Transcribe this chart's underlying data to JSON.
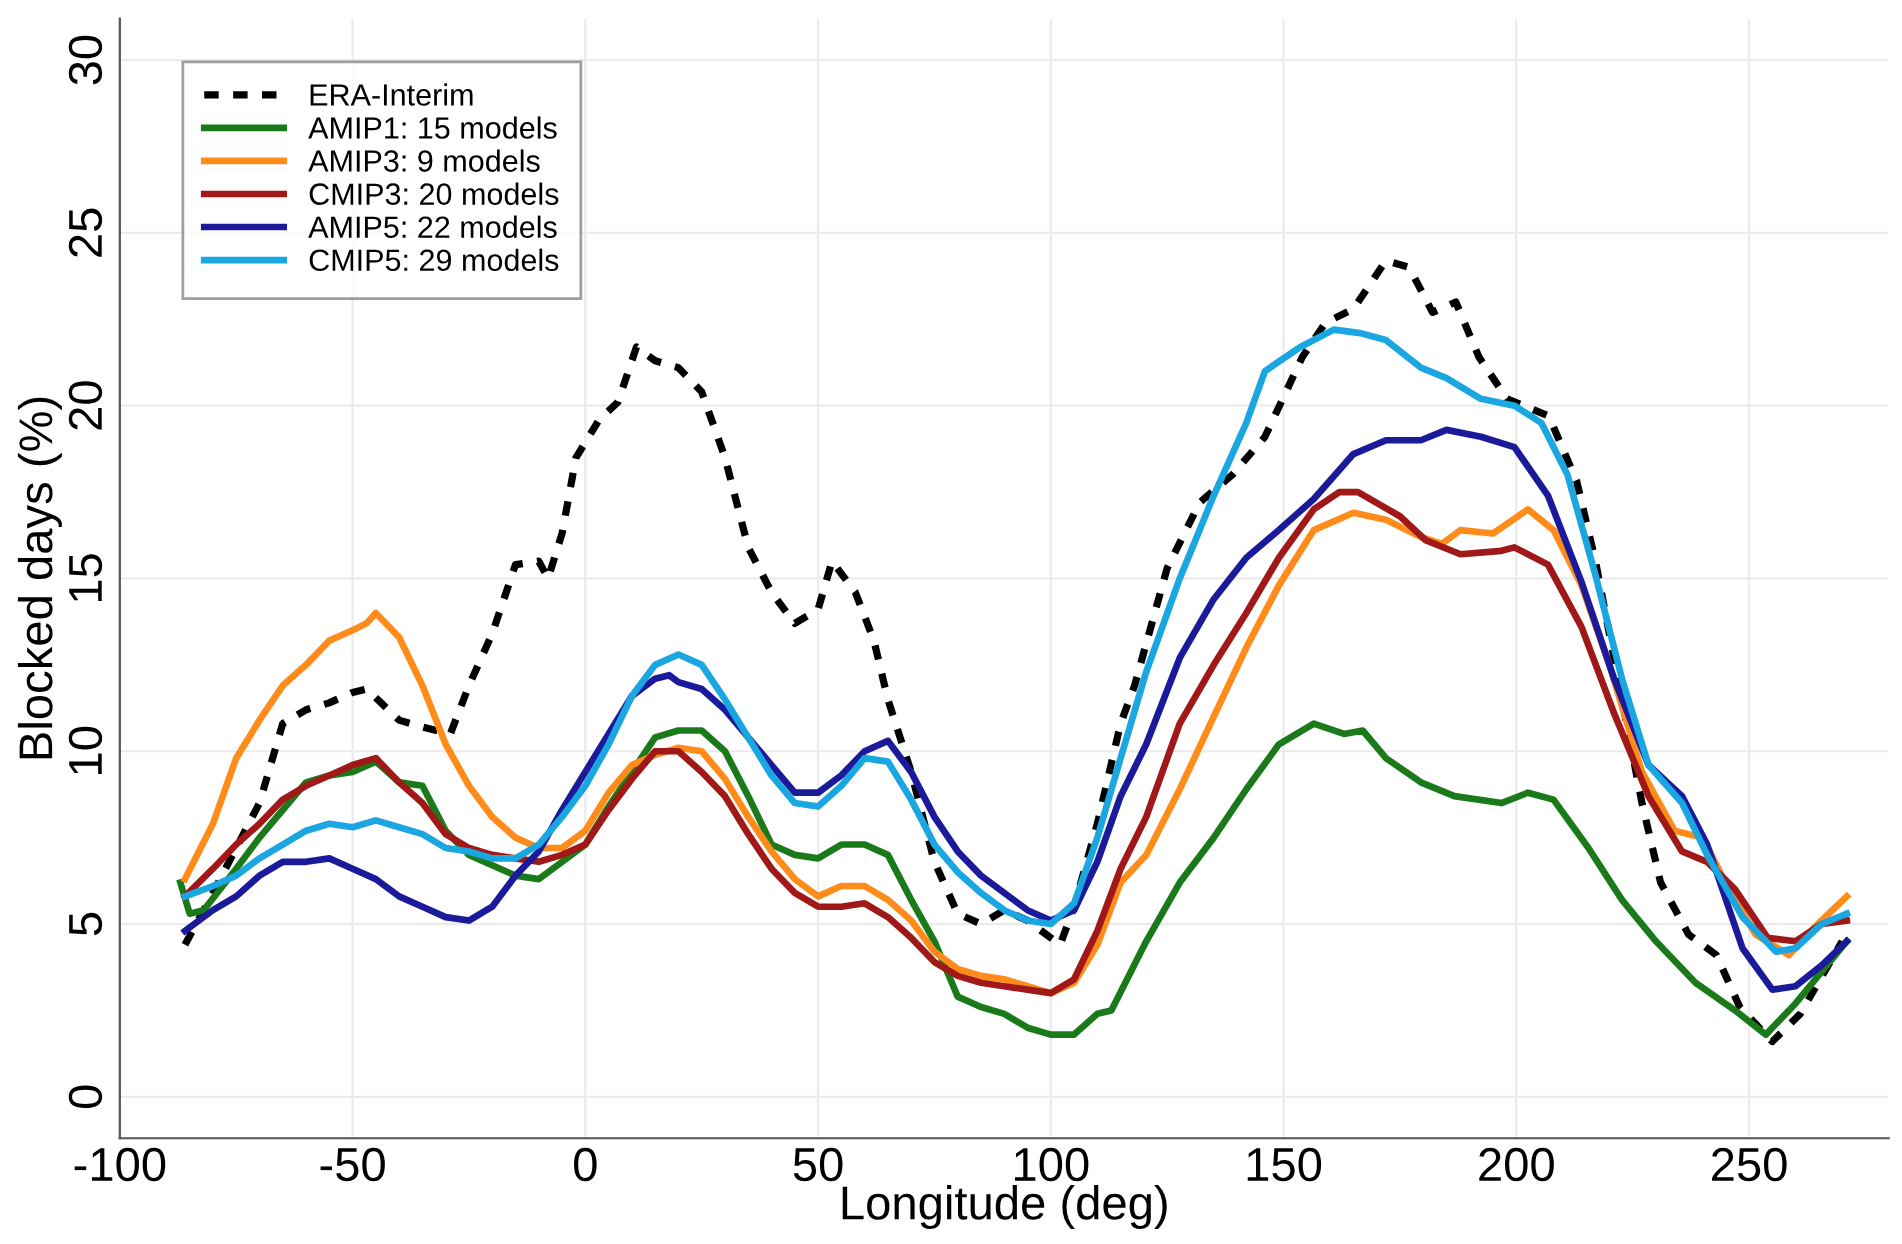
{
  "chart_data": {
    "type": "line",
    "xlabel": "Longitude (deg)",
    "ylabel": "Blocked days (%)",
    "xlim": [
      -100,
      280
    ],
    "ylim": [
      -1.2,
      31.2
    ],
    "xticks": [
      -100,
      -50,
      0,
      50,
      100,
      150,
      200,
      250
    ],
    "yticks": [
      0,
      5,
      10,
      15,
      20,
      25,
      30
    ],
    "grid": true,
    "legend": "top left",
    "marker": "none",
    "series": [
      {
        "name": "ERA-Interim",
        "color": "#000000",
        "line_style": "dotted",
        "x": [
          -86,
          -80,
          -70,
          -65,
          -60,
          -55,
          -50,
          -47,
          -40,
          -35,
          -29,
          -25,
          -20,
          -15,
          -10,
          -8,
          -5,
          -2,
          3,
          7,
          11,
          15,
          20,
          25,
          30,
          35,
          40,
          45,
          50,
          53,
          58,
          62,
          65,
          70,
          75,
          80,
          85,
          90,
          95,
          100,
          102,
          105,
          110,
          115,
          118,
          125,
          132,
          139,
          146,
          154,
          159,
          165,
          172,
          177,
          182,
          187,
          192,
          198,
          207,
          213,
          217,
          221,
          227,
          231,
          237,
          243,
          248,
          255,
          261,
          270
        ],
        "values": [
          4.4,
          5.9,
          8.5,
          10.8,
          11.2,
          11.4,
          11.7,
          11.8,
          10.9,
          10.7,
          10.5,
          11.9,
          13.4,
          15.4,
          15.5,
          15.0,
          16.3,
          18.5,
          19.6,
          20.1,
          21.7,
          21.3,
          21.1,
          20.4,
          18.5,
          15.9,
          14.6,
          13.7,
          14.1,
          15.5,
          14.6,
          13.2,
          11.5,
          9.4,
          6.8,
          5.3,
          5.0,
          5.4,
          5.1,
          4.6,
          4.4,
          5.5,
          7.9,
          10.8,
          11.9,
          15.3,
          17.2,
          18.0,
          19.1,
          21.4,
          22.4,
          22.8,
          24.2,
          24.0,
          22.7,
          23.0,
          21.4,
          20.2,
          19.7,
          17.8,
          15.5,
          12.7,
          8.5,
          6.2,
          4.7,
          4.1,
          2.6,
          1.6,
          2.4,
          4.5
        ]
      },
      {
        "name": "AMIP1: 15 models",
        "color": "#1a7a1a",
        "x": [
          -87,
          -85,
          -82,
          -75,
          -70,
          -65,
          -60,
          -55,
          -50,
          -45,
          -40,
          -35,
          -30,
          -25,
          -20,
          -15,
          -10,
          -5,
          0,
          5,
          10,
          15,
          20,
          25,
          30,
          35,
          40,
          45,
          50,
          55,
          60,
          65,
          70,
          75,
          80,
          85,
          90,
          95,
          100,
          105,
          110,
          113,
          120.5,
          127.7,
          135,
          142,
          149,
          156.5,
          163,
          167,
          172,
          179.5,
          186.7,
          196.8,
          202.5,
          208,
          215.5,
          222.7,
          230,
          238.5,
          247,
          253.6,
          260,
          271
        ],
        "values": [
          6.2,
          5.3,
          5.4,
          6.6,
          7.5,
          8.3,
          9.1,
          9.3,
          9.4,
          9.7,
          9.1,
          9.0,
          7.7,
          7.0,
          6.7,
          6.4,
          6.3,
          6.8,
          7.3,
          8.4,
          9.4,
          10.4,
          10.6,
          10.6,
          10.0,
          8.7,
          7.3,
          7.0,
          6.9,
          7.3,
          7.3,
          7.0,
          5.7,
          4.5,
          2.9,
          2.6,
          2.4,
          2.0,
          1.8,
          1.8,
          2.4,
          2.5,
          4.5,
          6.2,
          7.5,
          8.9,
          10.2,
          10.8,
          10.5,
          10.6,
          9.8,
          9.1,
          8.7,
          8.5,
          8.8,
          8.6,
          7.2,
          5.7,
          4.5,
          3.3,
          2.5,
          1.8,
          2.7,
          4.5
        ]
      },
      {
        "name": "AMIP3: 9 models",
        "color": "#ff8c1a",
        "x": [
          -86,
          -80,
          -75,
          -70,
          -65,
          -60,
          -55,
          -50,
          -47,
          -45,
          -40,
          -35,
          -30,
          -25,
          -20,
          -15,
          -10,
          -5,
          0,
          5,
          10,
          15,
          20,
          25,
          30,
          35,
          40,
          45,
          50,
          55,
          60,
          65,
          70,
          75,
          80,
          85,
          90,
          95,
          100,
          105,
          110,
          115,
          120.5,
          127.7,
          135,
          142,
          149,
          156.5,
          165,
          172,
          179.5,
          184,
          188,
          195,
          202.5,
          208,
          214,
          220,
          227,
          234,
          240,
          245.7,
          251.4,
          258.6,
          264,
          271
        ],
        "values": [
          6.3,
          7.9,
          9.8,
          10.9,
          11.9,
          12.5,
          13.2,
          13.5,
          13.7,
          14.0,
          13.3,
          11.9,
          10.2,
          9.0,
          8.1,
          7.5,
          7.2,
          7.2,
          7.7,
          8.8,
          9.6,
          9.9,
          10.1,
          10.0,
          9.2,
          8.1,
          7.1,
          6.3,
          5.8,
          6.1,
          6.1,
          5.7,
          5.1,
          4.2,
          3.7,
          3.5,
          3.4,
          3.2,
          3.0,
          3.3,
          4.4,
          6.2,
          7.0,
          8.9,
          11.0,
          13.0,
          14.8,
          16.4,
          16.9,
          16.7,
          16.2,
          16.0,
          16.4,
          16.3,
          17.0,
          16.4,
          14.8,
          12.5,
          9.4,
          7.7,
          7.5,
          6.0,
          4.7,
          4.1,
          4.9,
          5.8
        ]
      },
      {
        "name": "CMIP3: 20 models",
        "color": "#a01818",
        "x": [
          -86,
          -80,
          -75,
          -70,
          -65,
          -60,
          -55,
          -50,
          -45,
          -40,
          -35,
          -30,
          -25,
          -20,
          -15,
          -10,
          -5,
          0,
          5,
          10,
          15,
          20,
          25,
          30,
          35,
          40,
          45,
          50,
          55,
          60,
          65,
          70,
          75,
          80,
          85,
          90,
          95,
          100,
          105,
          110,
          115,
          120.5,
          127.7,
          135,
          142,
          149,
          156.5,
          162,
          166,
          175,
          180.6,
          188,
          196.8,
          199.6,
          206.8,
          214,
          221,
          228.4,
          235.6,
          241,
          247,
          254,
          260,
          265.6,
          271
        ],
        "values": [
          5.8,
          6.6,
          7.3,
          7.9,
          8.6,
          9.0,
          9.3,
          9.6,
          9.8,
          9.1,
          8.5,
          7.6,
          7.2,
          7.0,
          6.9,
          6.8,
          7.0,
          7.3,
          8.3,
          9.2,
          10.0,
          10.0,
          9.4,
          8.7,
          7.6,
          6.6,
          5.9,
          5.5,
          5.5,
          5.6,
          5.2,
          4.6,
          3.9,
          3.5,
          3.3,
          3.2,
          3.1,
          3.0,
          3.4,
          4.8,
          6.6,
          8.1,
          10.8,
          12.5,
          14.0,
          15.6,
          17.0,
          17.5,
          17.5,
          16.8,
          16.1,
          15.7,
          15.8,
          15.9,
          15.4,
          13.6,
          11.1,
          8.7,
          7.1,
          6.8,
          6.0,
          4.6,
          4.5,
          5.0,
          5.1
        ]
      },
      {
        "name": "AMIP5: 22 models",
        "color": "#1a1a9a",
        "x": [
          -86,
          -80,
          -75,
          -70,
          -65,
          -60,
          -55,
          -50,
          -45,
          -40,
          -35,
          -30,
          -25,
          -20,
          -15,
          -10,
          -5,
          0,
          5,
          10,
          15,
          18,
          20,
          25,
          30,
          35,
          40,
          45,
          50,
          55,
          60,
          65,
          70,
          75,
          80,
          85,
          90,
          95,
          100,
          105,
          110,
          115,
          120.5,
          127.7,
          135,
          142,
          149,
          156.5,
          165,
          172,
          179.5,
          185,
          192.4,
          199.6,
          206.8,
          214,
          221,
          228.4,
          235.6,
          241,
          248.6,
          255,
          260,
          265.6,
          271
        ],
        "values": [
          4.8,
          5.4,
          5.8,
          6.4,
          6.8,
          6.8,
          6.9,
          6.6,
          6.3,
          5.8,
          5.5,
          5.2,
          5.1,
          5.5,
          6.4,
          7.1,
          8.3,
          9.4,
          10.5,
          11.6,
          12.1,
          12.2,
          12.0,
          11.8,
          11.2,
          10.4,
          9.6,
          8.8,
          8.8,
          9.3,
          10.0,
          10.3,
          9.4,
          8.1,
          7.1,
          6.4,
          5.9,
          5.4,
          5.1,
          5.4,
          6.8,
          8.7,
          10.2,
          12.7,
          14.4,
          15.6,
          16.4,
          17.3,
          18.6,
          19.0,
          19.0,
          19.3,
          19.1,
          18.8,
          17.4,
          14.9,
          12.1,
          9.6,
          8.7,
          7.3,
          4.3,
          3.1,
          3.2,
          3.8,
          4.5
        ]
      },
      {
        "name": "CMIP5: 29 models",
        "color": "#1aa6e0",
        "x": [
          -86,
          -80,
          -75,
          -70,
          -65,
          -60,
          -55,
          -50,
          -45,
          -40,
          -35,
          -30,
          -25,
          -20,
          -15,
          -10,
          -5,
          0,
          5,
          10,
          15,
          20,
          25,
          30,
          35,
          40,
          45,
          50,
          55,
          60,
          65,
          70,
          75,
          80,
          85,
          90,
          95,
          100,
          105,
          110,
          115,
          120.5,
          127.7,
          135,
          142,
          146,
          153.6,
          160.8,
          166.5,
          172,
          179.5,
          185,
          192.4,
          199.6,
          205.4,
          211,
          217,
          222.7,
          228.4,
          235.6,
          241,
          248.6,
          255.8,
          260,
          265.6,
          271
        ],
        "values": [
          5.8,
          6.1,
          6.4,
          6.9,
          7.3,
          7.7,
          7.9,
          7.8,
          8.0,
          7.8,
          7.6,
          7.2,
          7.1,
          6.9,
          6.9,
          7.3,
          8.1,
          9.0,
          10.2,
          11.6,
          12.5,
          12.8,
          12.5,
          11.5,
          10.4,
          9.3,
          8.5,
          8.4,
          9.0,
          9.8,
          9.7,
          8.6,
          7.3,
          6.5,
          5.9,
          5.4,
          5.1,
          5.0,
          5.6,
          7.5,
          9.8,
          12.3,
          15.0,
          17.4,
          19.5,
          21.0,
          21.7,
          22.2,
          22.1,
          21.9,
          21.1,
          20.8,
          20.2,
          20.0,
          19.5,
          18.0,
          15.1,
          12.1,
          9.6,
          8.5,
          7.0,
          5.2,
          4.2,
          4.3,
          5.0,
          5.3
        ]
      }
    ]
  }
}
